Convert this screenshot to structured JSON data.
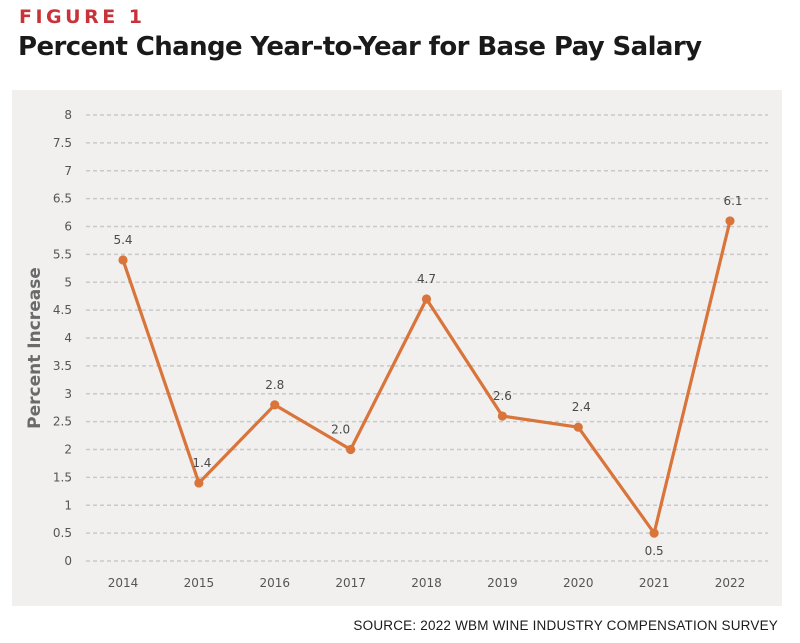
{
  "figure_label": "FIGURE 1",
  "title": "Percent Change Year-to-Year for Base Pay Salary",
  "source": "SOURCE: 2022 WBM WINE INDUSTRY COMPENSATION SURVEY",
  "colors": {
    "accent": "#c8333a",
    "line": "#d9743a",
    "panel": "#f1f0ef",
    "grid": "#c9c9c9"
  },
  "chart_data": {
    "type": "line",
    "x": [
      "2014",
      "2015",
      "2016",
      "2017",
      "2018",
      "2019",
      "2020",
      "2021",
      "2022"
    ],
    "values": [
      5.4,
      1.4,
      2.8,
      2.0,
      4.7,
      2.6,
      2.4,
      0.5,
      6.1
    ],
    "data_labels": [
      "5.4",
      "1.4",
      "2.8",
      "2.0",
      "4.7",
      "2.6",
      "2.4",
      "0.5",
      "6.1"
    ],
    "ylabel": "Percent Increase",
    "xlabel": "",
    "ylim": [
      0,
      8
    ],
    "yticks": [
      "0",
      "0.5",
      "1",
      "1.5",
      "2",
      "2.5",
      "3",
      "3.5",
      "4",
      "4.5",
      "5",
      "5.5",
      "6",
      "6.5",
      "7",
      "7.5",
      "8"
    ],
    "grid": true,
    "grid_style": "dashed"
  }
}
